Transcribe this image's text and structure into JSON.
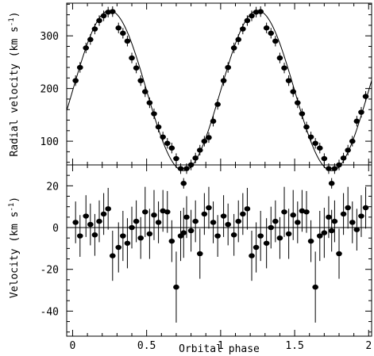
{
  "chart_data": [
    {
      "type": "scatter",
      "panel": "top",
      "title": "",
      "xlabel": "",
      "ylabel": "Radial velocity (km s",
      "ylabel_sup": "-1",
      "ylabel_close": ")",
      "xlim": [
        -0.04,
        2.02
      ],
      "ylim": [
        55,
        362
      ],
      "x_ticks": [
        0,
        0.5,
        1,
        1.5,
        2
      ],
      "y_ticks": [
        100,
        200,
        300
      ],
      "y_tick_labels": [
        "100",
        "200",
        "300"
      ],
      "x_tick_labels_shown": false,
      "grid": false,
      "model_curve": {
        "center": 196,
        "amplitude": 152,
        "phase_offset": 0.0,
        "description": "sinusoid"
      },
      "series": [
        {
          "x": [
            0.02,
            0.05,
            0.09,
            0.12,
            0.15,
            0.18,
            0.21,
            0.24,
            0.27,
            0.31,
            0.34,
            0.37,
            0.4,
            0.43,
            0.46,
            0.49,
            0.52,
            0.55,
            0.58,
            0.61,
            0.64,
            0.67,
            0.7,
            0.73,
            0.75,
            0.77,
            0.8,
            0.83,
            0.86,
            0.89,
            0.92,
            0.95,
            0.98,
            1.02,
            1.05,
            1.09,
            1.12,
            1.15,
            1.18,
            1.21,
            1.24,
            1.27,
            1.31,
            1.34,
            1.37,
            1.4,
            1.43,
            1.46,
            1.49,
            1.52,
            1.55,
            1.58,
            1.61,
            1.64,
            1.67,
            1.7,
            1.73,
            1.75,
            1.77,
            1.8,
            1.83,
            1.86,
            1.89,
            1.92,
            1.95,
            1.98
          ],
          "y": [
            215,
            240,
            277,
            293,
            313,
            329,
            338,
            345,
            346,
            315,
            305,
            290,
            258,
            239,
            215,
            194,
            173,
            152,
            127,
            108,
            96,
            87,
            67,
            48,
            20,
            48,
            55,
            68,
            83,
            100,
            107,
            138,
            170,
            215,
            240,
            277,
            293,
            313,
            329,
            338,
            345,
            346,
            315,
            305,
            290,
            258,
            239,
            215,
            194,
            173,
            152,
            127,
            108,
            96,
            87,
            67,
            48,
            20,
            48,
            55,
            68,
            83,
            100,
            138,
            155,
            185
          ],
          "errors": [
            10,
            10,
            10,
            10,
            10,
            10,
            10,
            10,
            10,
            10,
            10,
            10,
            10,
            10,
            10,
            10,
            10,
            10,
            10,
            10,
            10,
            10,
            10,
            10,
            10,
            10,
            10,
            10,
            10,
            10,
            10,
            10,
            10,
            10,
            10,
            10,
            10,
            10,
            10,
            10,
            10,
            10,
            10,
            10,
            10,
            10,
            10,
            10,
            10,
            10,
            10,
            10,
            10,
            10,
            10,
            10,
            10,
            10,
            10,
            10,
            10,
            10,
            10,
            10,
            10,
            10
          ]
        }
      ]
    },
    {
      "type": "scatter",
      "panel": "bottom",
      "title": "",
      "xlabel": "Orbital phase",
      "ylabel": "Velocity  (km s",
      "ylabel_sup": "-1",
      "ylabel_close": ")",
      "xlim": [
        -0.04,
        2.02
      ],
      "ylim": [
        -52,
        30
      ],
      "x_ticks": [
        0,
        0.5,
        1,
        1.5,
        2
      ],
      "x_tick_labels": [
        "0",
        "0.5",
        "1",
        "1.5",
        "2"
      ],
      "y_ticks": [
        -40,
        -20,
        0,
        20
      ],
      "y_tick_labels": [
        "-40",
        "-20",
        "0",
        "20"
      ],
      "zero_line": true,
      "grid": false,
      "series": [
        {
          "x": [
            0.02,
            0.05,
            0.09,
            0.12,
            0.15,
            0.18,
            0.21,
            0.24,
            0.27,
            0.31,
            0.34,
            0.37,
            0.4,
            0.43,
            0.46,
            0.49,
            0.52,
            0.55,
            0.58,
            0.61,
            0.64,
            0.67,
            0.7,
            0.73,
            0.75,
            0.77,
            0.8,
            0.83,
            0.86,
            0.89,
            0.92,
            0.95,
            0.98,
            1.02,
            1.05,
            1.09,
            1.12,
            1.15,
            1.18,
            1.21,
            1.24,
            1.27,
            1.31,
            1.34,
            1.37,
            1.4,
            1.43,
            1.46,
            1.49,
            1.52,
            1.55,
            1.58,
            1.61,
            1.64,
            1.67,
            1.7,
            1.73,
            1.75,
            1.77,
            1.8,
            1.83,
            1.86,
            1.89,
            1.92,
            1.95,
            1.98
          ],
          "y": [
            2.5,
            -4,
            5.5,
            1.5,
            -3.5,
            3,
            6.5,
            9,
            -13.5,
            -9.5,
            -4,
            -7.5,
            0,
            3,
            -5,
            7.5,
            -3,
            6,
            2.5,
            8,
            7.5,
            -6.5,
            -28.5,
            -4,
            -2.5,
            5,
            -1.5,
            3,
            -12.5,
            6.5,
            9.5,
            2.5,
            -4,
            5.5,
            1.5,
            -3.5,
            3,
            6.5,
            9,
            -13.5,
            -9.5,
            -4,
            -7.5,
            0,
            3,
            -5,
            7.5,
            -3,
            6,
            2.5,
            8,
            7.5,
            -6.5,
            -28.5,
            -4,
            -2.5,
            5,
            -1.5,
            3,
            -12.5,
            6.5,
            9.5,
            2.5,
            -1,
            5.5,
            9.5
          ],
          "errors": [
            10,
            10,
            10,
            10,
            10,
            10,
            10,
            10,
            12,
            12,
            12,
            12,
            10,
            10,
            10,
            12,
            12,
            12,
            10,
            10,
            10,
            10,
            17,
            12,
            12,
            10,
            10,
            10,
            12,
            10,
            10,
            10,
            10,
            10,
            10,
            10,
            10,
            10,
            10,
            12,
            12,
            12,
            12,
            10,
            10,
            10,
            12,
            12,
            12,
            10,
            10,
            10,
            10,
            17,
            12,
            12,
            10,
            10,
            10,
            12,
            10,
            10,
            10,
            10,
            10,
            10
          ]
        }
      ]
    }
  ]
}
